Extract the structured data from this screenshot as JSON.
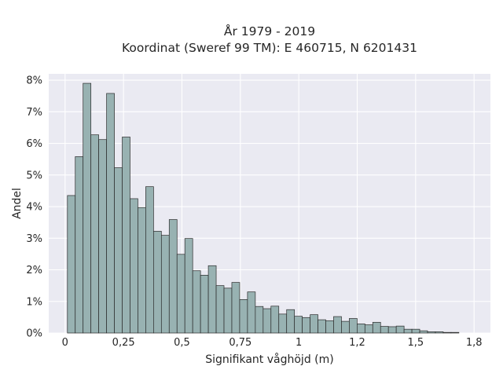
{
  "chart_data": {
    "type": "bar",
    "title": "År 1979 - 2019",
    "subtitle": "Koordinat (Sweref 99 TM): E 460715, N 6201431",
    "xlabel": "Signifikant våghöjd (m)",
    "ylabel": "Andel",
    "xlim": [
      -0.07,
      1.82
    ],
    "ylim": [
      0,
      8.2
    ],
    "x_ticks": [
      0,
      0.25,
      0.5,
      0.75,
      1,
      1.25,
      1.5,
      1.75
    ],
    "x_tick_labels": [
      "0",
      "0,25",
      "0,5",
      "0,75",
      "1",
      "1,2",
      "1,5",
      "1,8"
    ],
    "y_ticks": [
      0,
      1,
      2,
      3,
      4,
      5,
      6,
      7,
      8
    ],
    "y_tick_labels": [
      "0%",
      "1%",
      "2%",
      "3%",
      "4%",
      "5%",
      "6%",
      "7%",
      "8%"
    ],
    "y_unit": "%",
    "bin_start": 0.01,
    "bin_width": 0.0335,
    "values": [
      4.35,
      5.58,
      7.9,
      6.27,
      6.12,
      7.58,
      5.23,
      6.2,
      4.25,
      3.97,
      4.63,
      3.22,
      3.09,
      3.59,
      2.49,
      2.99,
      1.97,
      1.83,
      2.13,
      1.5,
      1.42,
      1.6,
      1.06,
      1.3,
      0.84,
      0.77,
      0.85,
      0.6,
      0.74,
      0.53,
      0.49,
      0.58,
      0.42,
      0.39,
      0.52,
      0.37,
      0.46,
      0.29,
      0.26,
      0.34,
      0.21,
      0.2,
      0.22,
      0.12,
      0.12,
      0.07,
      0.04,
      0.04,
      0.02,
      0.02
    ],
    "grid": true,
    "legend": "none",
    "colors": {
      "bar_fill": "#98b2b2",
      "bar_edge": "#2b2b2b",
      "plot_background": "#eaeaf2",
      "grid": "#ffffff"
    }
  }
}
